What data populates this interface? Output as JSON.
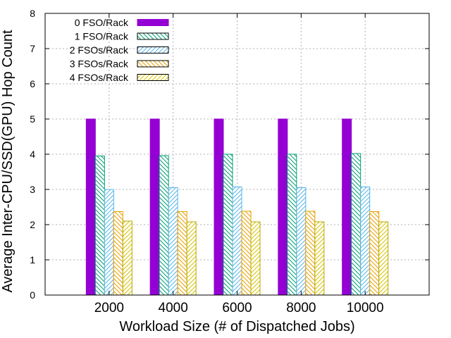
{
  "chart_data": {
    "type": "bar",
    "xlabel": "Workload Size (# of Dispatched Jobs)",
    "ylabel": "Average Inter-CPU/SSD(GPU) Hop Count",
    "ylim": [
      0,
      8
    ],
    "yticks": [
      0,
      1,
      2,
      3,
      4,
      5,
      6,
      7,
      8
    ],
    "grid": true,
    "legend_position": "top-left",
    "categories": [
      "2000",
      "4000",
      "6000",
      "8000",
      "10000"
    ],
    "series": [
      {
        "name": "0 FSO/Rack",
        "values": [
          5.0,
          5.0,
          5.0,
          5.0,
          5.0
        ],
        "fill": "#9400d3",
        "pattern": "solid"
      },
      {
        "name": "1 FSO/Rack",
        "values": [
          3.95,
          3.96,
          4.0,
          4.0,
          4.02
        ],
        "fill": "#009e73",
        "pattern": "diag-down"
      },
      {
        "name": "2 FSOs/Rack",
        "values": [
          3.0,
          3.05,
          3.07,
          3.05,
          3.07
        ],
        "fill": "#56b4e9",
        "pattern": "diag-up"
      },
      {
        "name": "3 FSOs/Rack",
        "values": [
          2.37,
          2.37,
          2.38,
          2.38,
          2.37
        ],
        "fill": "#e69f00",
        "pattern": "diag-down"
      },
      {
        "name": "4 FSOs/Rack",
        "values": [
          2.1,
          2.08,
          2.08,
          2.08,
          2.08
        ],
        "fill": "#f0e442",
        "pattern": "diag-up"
      }
    ]
  }
}
